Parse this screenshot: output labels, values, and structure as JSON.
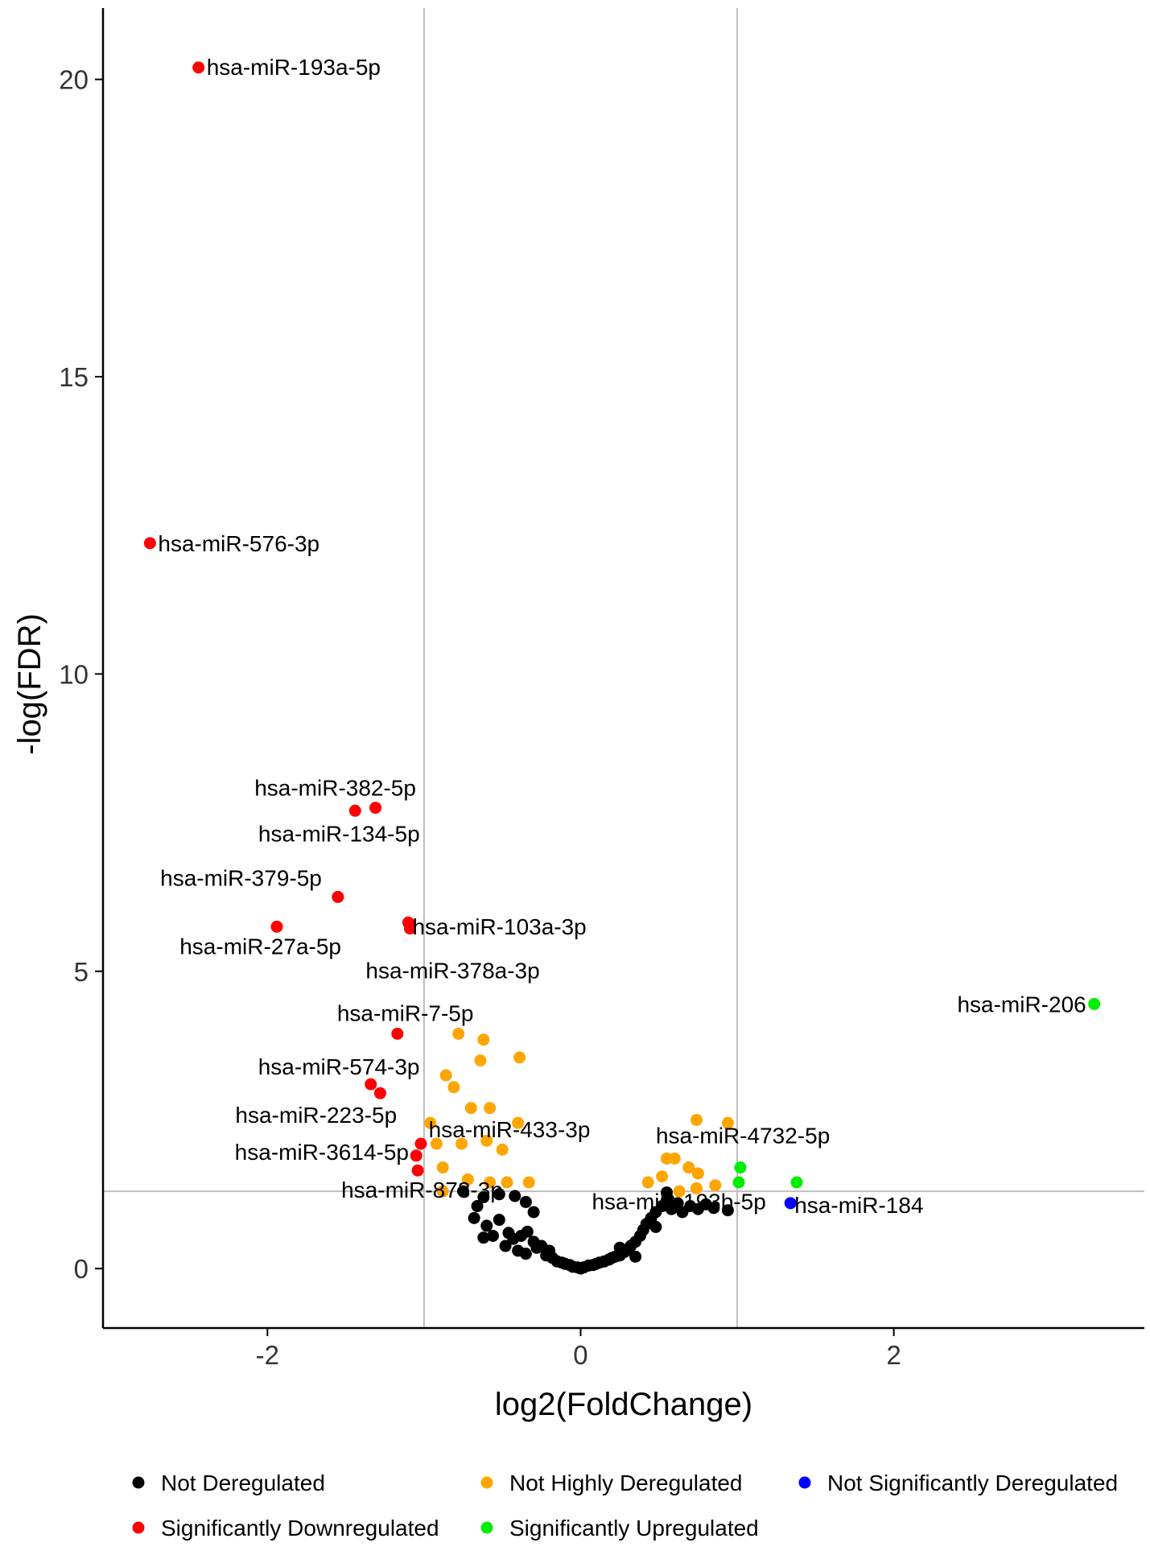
{
  "chart_data": {
    "type": "scatter",
    "title": "",
    "xlabel": "log2(FoldChange)",
    "ylabel": "-log(FDR)",
    "xlim": [
      -3.05,
      3.6
    ],
    "ylim": [
      -1.0,
      21.2
    ],
    "x_ticks": [
      "-2",
      "0",
      "2"
    ],
    "x_tick_values": [
      -2,
      0,
      2
    ],
    "y_ticks": [
      "0",
      "5",
      "10",
      "15",
      "20"
    ],
    "y_tick_values": [
      0,
      5,
      10,
      15,
      20
    ],
    "thresholds": {
      "log2fc": [
        -1,
        1
      ],
      "neg_log_fdr": 1.3
    },
    "grid": false,
    "legend_position": "bottom",
    "colors": {
      "not_deregulated": "#000000",
      "significantly_down": "#ff0000",
      "not_highly_deregulated": "#ffa500",
      "significantly_up": "#00ee00",
      "not_significantly_deregulated": "#0000ff",
      "threshold_line": "#bebebe",
      "axis": "#000000"
    },
    "legend": [
      {
        "key": "not_deregulated",
        "label": "Not Deregulated"
      },
      {
        "key": "not_highly_deregulated",
        "label": "Not Highly Deregulated"
      },
      {
        "key": "not_significantly_deregulated",
        "label": "Not Significantly Deregulated"
      },
      {
        "key": "significantly_down",
        "label": "Significantly Downregulated"
      },
      {
        "key": "significantly_up",
        "label": "Significantly Upregulated"
      }
    ],
    "series": [
      {
        "name": "Significantly Downregulated",
        "color_key": "significantly_down",
        "points": [
          {
            "x": -2.44,
            "y": 20.2,
            "label": "hsa-miR-193a-5p"
          },
          {
            "x": -2.75,
            "y": 12.2,
            "label": "hsa-miR-576-3p"
          },
          {
            "x": -1.31,
            "y": 7.75,
            "label": "hsa-miR-382-5p"
          },
          {
            "x": -1.44,
            "y": 7.7,
            "label": "hsa-miR-134-5p"
          },
          {
            "x": -1.55,
            "y": 6.25,
            "label": "hsa-miR-379-5p"
          },
          {
            "x": -1.1,
            "y": 5.82,
            "label": "hsa-miR-103a-3p"
          },
          {
            "x": -1.09,
            "y": 5.72,
            "label": "hsa-miR-378a-3p"
          },
          {
            "x": -1.94,
            "y": 5.75,
            "label": "hsa-miR-27a-5p"
          },
          {
            "x": -1.17,
            "y": 3.95,
            "label": "hsa-miR-7-5p"
          },
          {
            "x": -1.34,
            "y": 3.1,
            "label": "hsa-miR-574-3p"
          },
          {
            "x": -1.28,
            "y": 2.95,
            "label": "hsa-miR-223-5p"
          },
          {
            "x": -1.02,
            "y": 2.1,
            "label": "hsa-miR-3614-5p"
          },
          {
            "x": -1.05,
            "y": 1.9,
            "label": ""
          },
          {
            "x": -1.04,
            "y": 1.65,
            "label": "hsa-miR-873-3p"
          }
        ]
      },
      {
        "name": "Significantly Upregulated",
        "color_key": "significantly_up",
        "points": [
          {
            "x": 3.28,
            "y": 4.45,
            "label": "hsa-miR-206"
          },
          {
            "x": 1.02,
            "y": 1.7,
            "label": "hsa-miR-4732-5p"
          },
          {
            "x": 1.01,
            "y": 1.45,
            "label": ""
          },
          {
            "x": 1.38,
            "y": 1.45,
            "label": ""
          }
        ]
      },
      {
        "name": "Not Significantly Deregulated",
        "color_key": "not_significantly_deregulated",
        "points": [
          {
            "x": 1.34,
            "y": 1.1,
            "label": "hsa-miR-184"
          }
        ]
      },
      {
        "name": "Not Highly Deregulated",
        "color_key": "not_highly_deregulated",
        "points": [
          {
            "x": -0.78,
            "y": 3.95,
            "label": ""
          },
          {
            "x": -0.62,
            "y": 3.85,
            "label": ""
          },
          {
            "x": -0.64,
            "y": 3.5,
            "label": ""
          },
          {
            "x": -0.39,
            "y": 3.55,
            "label": ""
          },
          {
            "x": -0.86,
            "y": 3.25,
            "label": ""
          },
          {
            "x": -0.81,
            "y": 3.05,
            "label": ""
          },
          {
            "x": -0.7,
            "y": 2.7,
            "label": ""
          },
          {
            "x": -0.58,
            "y": 2.7,
            "label": ""
          },
          {
            "x": -0.96,
            "y": 2.45,
            "label": "hsa-miR-433-3p"
          },
          {
            "x": -0.4,
            "y": 2.45,
            "label": ""
          },
          {
            "x": -0.92,
            "y": 2.1,
            "label": ""
          },
          {
            "x": -0.76,
            "y": 2.1,
            "label": ""
          },
          {
            "x": -0.6,
            "y": 2.15,
            "label": ""
          },
          {
            "x": -0.5,
            "y": 2.0,
            "label": ""
          },
          {
            "x": -0.88,
            "y": 1.7,
            "label": ""
          },
          {
            "x": -0.72,
            "y": 1.5,
            "label": ""
          },
          {
            "x": -0.58,
            "y": 1.45,
            "label": ""
          },
          {
            "x": -0.47,
            "y": 1.45,
            "label": ""
          },
          {
            "x": -0.33,
            "y": 1.45,
            "label": ""
          },
          {
            "x": -0.88,
            "y": 1.3,
            "label": ""
          },
          {
            "x": 0.74,
            "y": 2.5,
            "label": ""
          },
          {
            "x": 0.94,
            "y": 2.45,
            "label": ""
          },
          {
            "x": 0.55,
            "y": 1.85,
            "label": ""
          },
          {
            "x": 0.6,
            "y": 1.85,
            "label": ""
          },
          {
            "x": 0.69,
            "y": 1.7,
            "label": ""
          },
          {
            "x": 0.75,
            "y": 1.6,
            "label": ""
          },
          {
            "x": 0.52,
            "y": 1.55,
            "label": ""
          },
          {
            "x": 0.43,
            "y": 1.45,
            "label": ""
          },
          {
            "x": 0.74,
            "y": 1.35,
            "label": "hsa-miR-193b-5p"
          },
          {
            "x": 0.86,
            "y": 1.4,
            "label": ""
          },
          {
            "x": 0.63,
            "y": 1.3,
            "label": ""
          }
        ]
      },
      {
        "name": "Not Deregulated",
        "color_key": "not_deregulated",
        "points": [
          {
            "x": -0.75,
            "y": 1.3,
            "label": ""
          },
          {
            "x": -0.62,
            "y": 1.2,
            "label": ""
          },
          {
            "x": -0.52,
            "y": 1.25,
            "label": ""
          },
          {
            "x": -0.42,
            "y": 1.22,
            "label": ""
          },
          {
            "x": -0.35,
            "y": 1.12,
            "label": ""
          },
          {
            "x": -0.3,
            "y": 0.95,
            "label": ""
          },
          {
            "x": -0.68,
            "y": 0.85,
            "label": ""
          },
          {
            "x": -0.6,
            "y": 0.72,
            "label": ""
          },
          {
            "x": -0.56,
            "y": 0.55,
            "label": ""
          },
          {
            "x": -0.62,
            "y": 0.52,
            "label": ""
          },
          {
            "x": -0.46,
            "y": 0.6,
            "label": ""
          },
          {
            "x": -0.43,
            "y": 0.5,
            "label": ""
          },
          {
            "x": -0.38,
            "y": 0.55,
            "label": ""
          },
          {
            "x": -0.34,
            "y": 0.62,
            "label": ""
          },
          {
            "x": -0.3,
            "y": 0.45,
            "label": ""
          },
          {
            "x": -0.28,
            "y": 0.35,
            "label": ""
          },
          {
            "x": -0.25,
            "y": 0.38,
            "label": ""
          },
          {
            "x": -0.4,
            "y": 0.3,
            "label": ""
          },
          {
            "x": -0.35,
            "y": 0.25,
            "label": ""
          },
          {
            "x": -0.22,
            "y": 0.22,
            "label": ""
          },
          {
            "x": -0.18,
            "y": 0.18,
            "label": ""
          },
          {
            "x": -0.15,
            "y": 0.12,
            "label": ""
          },
          {
            "x": -0.12,
            "y": 0.1,
            "label": ""
          },
          {
            "x": -0.1,
            "y": 0.08,
            "label": ""
          },
          {
            "x": -0.07,
            "y": 0.06,
            "label": ""
          },
          {
            "x": -0.05,
            "y": 0.03,
            "label": ""
          },
          {
            "x": -0.02,
            "y": 0.02,
            "label": ""
          },
          {
            "x": 0.0,
            "y": 0.0,
            "label": ""
          },
          {
            "x": 0.02,
            "y": 0.02,
            "label": ""
          },
          {
            "x": 0.05,
            "y": 0.05,
            "label": ""
          },
          {
            "x": 0.08,
            "y": 0.06,
            "label": ""
          },
          {
            "x": 0.1,
            "y": 0.08,
            "label": ""
          },
          {
            "x": 0.12,
            "y": 0.1,
            "label": ""
          },
          {
            "x": 0.15,
            "y": 0.12,
            "label": ""
          },
          {
            "x": 0.18,
            "y": 0.15,
            "label": ""
          },
          {
            "x": 0.2,
            "y": 0.18,
            "label": ""
          },
          {
            "x": 0.22,
            "y": 0.2,
            "label": ""
          },
          {
            "x": 0.25,
            "y": 0.22,
            "label": ""
          },
          {
            "x": 0.28,
            "y": 0.28,
            "label": ""
          },
          {
            "x": 0.3,
            "y": 0.32,
            "label": ""
          },
          {
            "x": 0.32,
            "y": 0.38,
            "label": ""
          },
          {
            "x": 0.35,
            "y": 0.45,
            "label": ""
          },
          {
            "x": 0.38,
            "y": 0.55,
            "label": ""
          },
          {
            "x": 0.4,
            "y": 0.65,
            "label": ""
          },
          {
            "x": 0.42,
            "y": 0.75,
            "label": ""
          },
          {
            "x": 0.45,
            "y": 0.85,
            "label": ""
          },
          {
            "x": 0.48,
            "y": 0.95,
            "label": ""
          },
          {
            "x": 0.52,
            "y": 1.05,
            "label": ""
          },
          {
            "x": 0.55,
            "y": 1.15,
            "label": ""
          },
          {
            "x": 0.58,
            "y": 1.0,
            "label": ""
          },
          {
            "x": 0.62,
            "y": 1.1,
            "label": ""
          },
          {
            "x": 0.65,
            "y": 0.95,
            "label": ""
          },
          {
            "x": 0.7,
            "y": 1.05,
            "label": ""
          },
          {
            "x": 0.75,
            "y": 1.0,
            "label": ""
          },
          {
            "x": 0.8,
            "y": 1.08,
            "label": ""
          },
          {
            "x": 0.85,
            "y": 1.02,
            "label": ""
          },
          {
            "x": 0.94,
            "y": 0.98,
            "label": ""
          },
          {
            "x": 0.55,
            "y": 1.28,
            "label": ""
          },
          {
            "x": 0.48,
            "y": 0.7,
            "label": ""
          },
          {
            "x": 0.35,
            "y": 0.2,
            "label": ""
          },
          {
            "x": 0.25,
            "y": 0.35,
            "label": ""
          },
          {
            "x": -0.2,
            "y": 0.3,
            "label": ""
          },
          {
            "x": -0.48,
            "y": 0.38,
            "label": ""
          },
          {
            "x": -0.52,
            "y": 0.82,
            "label": ""
          },
          {
            "x": -0.66,
            "y": 1.05,
            "label": ""
          }
        ]
      }
    ]
  }
}
